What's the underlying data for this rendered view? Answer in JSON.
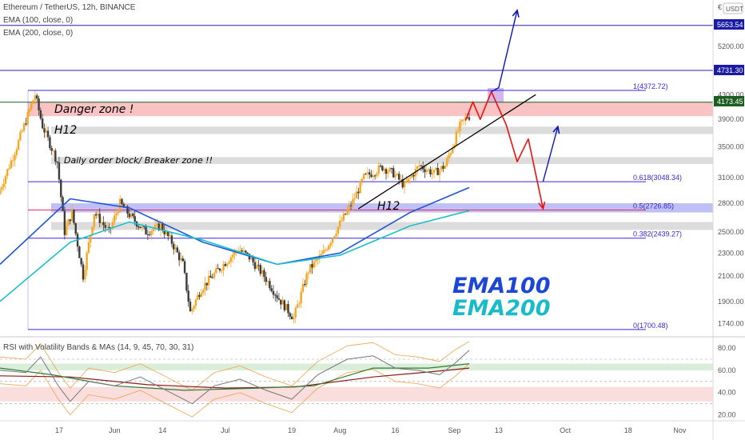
{
  "header": {
    "title": "Ethereum / TetherUS, 12h, BINANCE",
    "ema100": "EMA (100, close, 0)",
    "ema200": "EMA (200, close, 0)",
    "currency": "USDT",
    "currency_symbol": "€"
  },
  "rsi_panel": {
    "title": "RSI with Volatility Bands & MAs (14, 9, 45, 70, 30, 31)",
    "ticks": [
      80,
      60,
      40,
      20
    ],
    "tick_labels": [
      "80.00",
      "60.00",
      "40.00",
      "20.00"
    ]
  },
  "annotations": {
    "danger_zone": "Danger zone !",
    "h12_top": "H12",
    "order_block": "Daily order block/ Breaker zone !!",
    "h12_trend": "H12",
    "ema100_label": "EMA100",
    "ema200_label": "EMA200"
  },
  "price_tags": {
    "top": "5653.54",
    "mid": "4731.30",
    "current": "4173.45"
  },
  "fib": [
    {
      "label": "1(4372.72)",
      "value": 4372.72
    },
    {
      "label": "0.618(3048.34)",
      "value": 3048.34
    },
    {
      "label": "0.5(2726.85)",
      "value": 2726.85
    },
    {
      "label": "0.382(2439.27)",
      "value": 2439.27
    },
    {
      "label": "0(1700.48)",
      "value": 1700.48
    }
  ],
  "chart_data": {
    "type": "candlestick",
    "title": "Ethereum / TetherUS, 12h, BINANCE",
    "ylabel": "USDT",
    "y_log": true,
    "y_ticks": [
      1740,
      1900,
      2100,
      2300,
      2500,
      2800,
      3100,
      3500,
      3900,
      4300,
      5200
    ],
    "y_tick_labels": [
      "1740.00",
      "1900.00",
      "2100.00",
      "2300.00",
      "2500.00",
      "2800.00",
      "3100.00",
      "3500.00",
      "3900.00",
      "4300.00",
      "5200.00"
    ],
    "x_tick_labels": [
      "17",
      "Jun",
      "14",
      "Jul",
      "19",
      "Aug",
      "16",
      "Sep",
      "13",
      "Oct",
      "18",
      "Nov"
    ],
    "x_ticks": [
      "2021-05-17",
      "2021-06-01",
      "2021-06-14",
      "2021-07-01",
      "2021-07-19",
      "2021-08-01",
      "2021-08-16",
      "2021-09-01",
      "2021-09-13",
      "2021-10-01",
      "2021-10-18",
      "2021-11-01"
    ],
    "x_range": [
      "2021-05-01",
      "2021-11-10"
    ],
    "price_path": [
      [
        "2021-05-01",
        2900
      ],
      [
        "2021-05-06",
        3500
      ],
      [
        "2021-05-11",
        4300
      ],
      [
        "2021-05-13",
        3800
      ],
      [
        "2021-05-17",
        3300
      ],
      [
        "2021-05-19",
        2500
      ],
      [
        "2021-05-21",
        2700
      ],
      [
        "2021-05-24",
        2100
      ],
      [
        "2021-05-27",
        2700
      ],
      [
        "2021-05-31",
        2500
      ],
      [
        "2021-06-03",
        2800
      ],
      [
        "2021-06-06",
        2650
      ],
      [
        "2021-06-10",
        2500
      ],
      [
        "2021-06-14",
        2560
      ],
      [
        "2021-06-17",
        2400
      ],
      [
        "2021-06-20",
        2200
      ],
      [
        "2021-06-22",
        1820
      ],
      [
        "2021-06-25",
        2000
      ],
      [
        "2021-06-28",
        2100
      ],
      [
        "2021-07-01",
        2200
      ],
      [
        "2021-07-05",
        2340
      ],
      [
        "2021-07-08",
        2260
      ],
      [
        "2021-07-12",
        2100
      ],
      [
        "2021-07-16",
        1920
      ],
      [
        "2021-07-20",
        1780
      ],
      [
        "2021-07-24",
        2150
      ],
      [
        "2021-07-28",
        2300
      ],
      [
        "2021-08-01",
        2550
      ],
      [
        "2021-08-05",
        2820
      ],
      [
        "2021-08-08",
        3100
      ],
      [
        "2021-08-13",
        3230
      ],
      [
        "2021-08-16",
        3150
      ],
      [
        "2021-08-19",
        3000
      ],
      [
        "2021-08-23",
        3250
      ],
      [
        "2021-08-27",
        3150
      ],
      [
        "2021-08-30",
        3250
      ],
      [
        "2021-09-03",
        3800
      ],
      [
        "2021-09-05",
        3950
      ]
    ],
    "ema100_path": [
      [
        "2021-05-01",
        2200
      ],
      [
        "2021-05-20",
        2850
      ],
      [
        "2021-06-05",
        2750
      ],
      [
        "2021-06-25",
        2400
      ],
      [
        "2021-07-15",
        2200
      ],
      [
        "2021-08-01",
        2300
      ],
      [
        "2021-08-20",
        2700
      ],
      [
        "2021-09-05",
        2980
      ]
    ],
    "ema200_path": [
      [
        "2021-05-01",
        1900
      ],
      [
        "2021-05-20",
        2400
      ],
      [
        "2021-06-05",
        2600
      ],
      [
        "2021-06-25",
        2420
      ],
      [
        "2021-07-15",
        2200
      ],
      [
        "2021-08-01",
        2280
      ],
      [
        "2021-08-20",
        2560
      ],
      [
        "2021-09-05",
        2720
      ]
    ],
    "horizontal_levels": [
      5653.54,
      4731.3,
      4173.45
    ],
    "zones": [
      {
        "name": "danger-zone",
        "from": 3950,
        "to": 4173.45,
        "color": "#f7b9b7"
      },
      {
        "name": "h12-zone",
        "from": 3680,
        "to": 3790,
        "color": "#d6d6d6"
      },
      {
        "name": "order-block-zone",
        "from": 3270,
        "to": 3360,
        "color": "#d6d6d6"
      },
      {
        "name": "fib-05-zone",
        "from": 2700,
        "to": 2800,
        "color": "#b5b5f4"
      },
      {
        "name": "lower-gray-zone",
        "from": 2520,
        "to": 2600,
        "color": "#d6d6d6"
      }
    ],
    "trendline": [
      [
        "2021-08-06",
        2740
      ],
      [
        "2021-09-23",
        4300
      ]
    ],
    "red_projection": [
      [
        "2021-09-04",
        3880
      ],
      [
        "2021-09-06",
        4180
      ],
      [
        "2021-09-08",
        3900
      ],
      [
        "2021-09-11",
        4350
      ],
      [
        "2021-09-15",
        3820
      ],
      [
        "2021-09-18",
        3300
      ],
      [
        "2021-09-21",
        3610
      ],
      [
        "2021-09-25",
        2740
      ]
    ],
    "blue_projection_up": [
      [
        "2021-09-11",
        4350
      ],
      [
        "2021-09-13",
        4420
      ],
      [
        "2021-09-18",
        6000
      ]
    ],
    "blue_projection_mid": [
      [
        "2021-09-25",
        3050
      ],
      [
        "2021-09-29",
        3790
      ]
    ],
    "rsi": {
      "title": "RSI with Volatility Bands & MAs (14, 9, 45, 70, 30, 31)",
      "ylim": [
        16,
        88
      ],
      "upper_band": 70,
      "lower_band": 30,
      "rsi_path": [
        [
          "2021-05-01",
          60
        ],
        [
          "2021-05-08",
          58
        ],
        [
          "2021-05-12",
          72
        ],
        [
          "2021-05-17",
          45
        ],
        [
          "2021-05-20",
          32
        ],
        [
          "2021-05-25",
          50
        ],
        [
          "2021-06-01",
          46
        ],
        [
          "2021-06-08",
          54
        ],
        [
          "2021-06-15",
          42
        ],
        [
          "2021-06-22",
          30
        ],
        [
          "2021-06-28",
          46
        ],
        [
          "2021-07-05",
          52
        ],
        [
          "2021-07-12",
          42
        ],
        [
          "2021-07-19",
          34
        ],
        [
          "2021-07-26",
          56
        ],
        [
          "2021-08-03",
          70
        ],
        [
          "2021-08-10",
          73
        ],
        [
          "2021-08-16",
          62
        ],
        [
          "2021-08-22",
          60
        ],
        [
          "2021-08-28",
          56
        ],
        [
          "2021-09-01",
          66
        ],
        [
          "2021-09-05",
          78
        ]
      ],
      "ma_path": [
        [
          "2021-05-01",
          62
        ],
        [
          "2021-05-15",
          56
        ],
        [
          "2021-06-01",
          46
        ],
        [
          "2021-06-20",
          42
        ],
        [
          "2021-07-10",
          44
        ],
        [
          "2021-07-25",
          46
        ],
        [
          "2021-08-10",
          62
        ],
        [
          "2021-08-25",
          62
        ],
        [
          "2021-09-05",
          66
        ]
      ],
      "slow_ma_path": [
        [
          "2021-05-01",
          55
        ],
        [
          "2021-05-20",
          54
        ],
        [
          "2021-06-10",
          47
        ],
        [
          "2021-07-01",
          44
        ],
        [
          "2021-07-20",
          45
        ],
        [
          "2021-08-10",
          54
        ],
        [
          "2021-08-30",
          60
        ],
        [
          "2021-09-05",
          62
        ]
      ]
    }
  },
  "colors": {
    "up": "#f5a623",
    "down": "#3b3b3b",
    "ema100": "#1e56d6",
    "ema200": "#1cbfca",
    "fib_line": "#3a28d8",
    "level_line": "#2a1fa8",
    "trendline": "#000000",
    "red_path": "#ee1111",
    "blue_path": "#0a17b5"
  }
}
